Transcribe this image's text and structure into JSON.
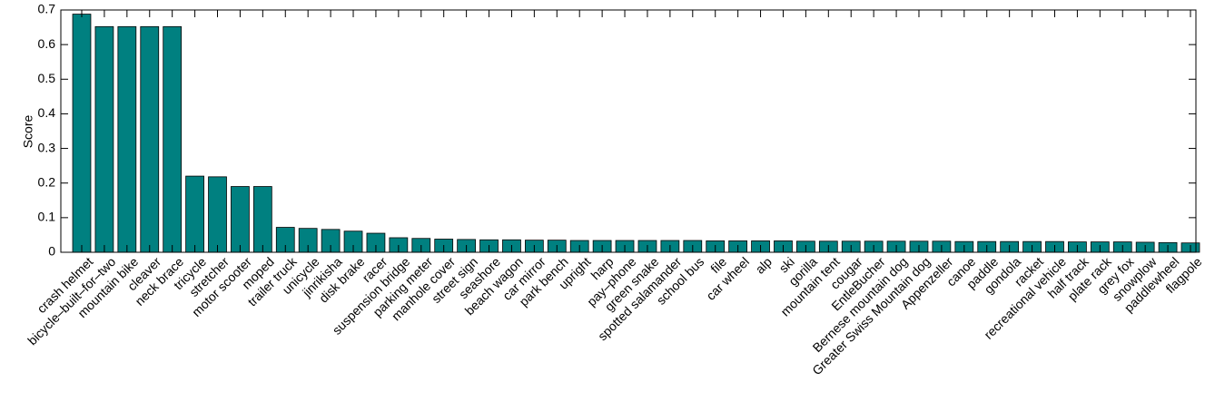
{
  "chart_data": {
    "type": "bar",
    "ylabel": "Score",
    "categories": [
      "crash helmet",
      "bicycle–built–for–two",
      "mountain bike",
      "cleaver",
      "neck brace",
      "tricycle",
      "stretcher",
      "motor scooter",
      "moped",
      "trailer truck",
      "unicycle",
      "jinrikisha",
      "disk brake",
      "racer",
      "suspension bridge",
      "parking meter",
      "manhole cover",
      "street sign",
      "seashore",
      "beach wagon",
      "car mirror",
      "park bench",
      "upright",
      "harp",
      "pay–phone",
      "green snake",
      "spotted salamander",
      "school bus",
      "file",
      "car wheel",
      "alp",
      "ski",
      "gorilla",
      "mountain tent",
      "cougar",
      "EntleBucher",
      "Bernese mountain dog",
      "Greater Swiss Mountain dog",
      "Appenzeller",
      "canoe",
      "paddle",
      "gondola",
      "racket",
      "recreational vehicle",
      "half track",
      "plate rack",
      "grey fox",
      "snowplow",
      "paddlewheel",
      "flagpole"
    ],
    "values": [
      0.688,
      0.652,
      0.652,
      0.652,
      0.652,
      0.22,
      0.218,
      0.19,
      0.19,
      0.072,
      0.069,
      0.066,
      0.061,
      0.055,
      0.042,
      0.04,
      0.038,
      0.037,
      0.036,
      0.036,
      0.035,
      0.035,
      0.034,
      0.034,
      0.034,
      0.034,
      0.034,
      0.034,
      0.033,
      0.033,
      0.033,
      0.033,
      0.032,
      0.032,
      0.032,
      0.032,
      0.032,
      0.032,
      0.032,
      0.031,
      0.031,
      0.031,
      0.031,
      0.031,
      0.03,
      0.03,
      0.03,
      0.029,
      0.028,
      0.027
    ],
    "color": "#008080",
    "ylim": [
      0,
      0.7
    ],
    "yticks": [
      0,
      0.1,
      0.2,
      0.3,
      0.4,
      0.5,
      0.6,
      0.7
    ]
  }
}
